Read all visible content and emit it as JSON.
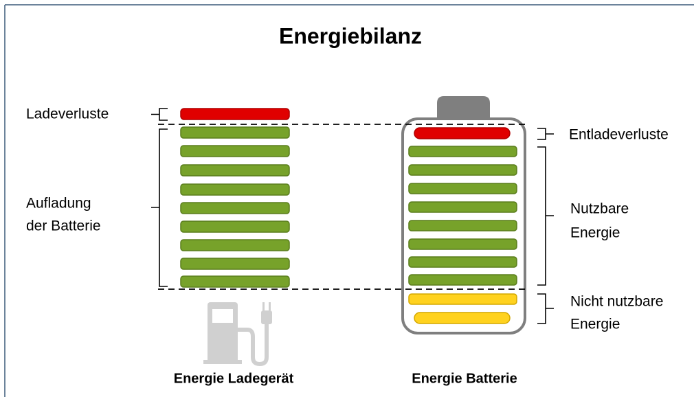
{
  "title": "Energiebilanz",
  "labels": {
    "charging_loss": "Ladeverluste",
    "charging": [
      "Aufladung",
      "der Batterie"
    ],
    "discharge_loss": "Entladeverluste",
    "usable": [
      "Nutzbare",
      "Energie"
    ],
    "unusable": [
      "Nicht nutzbare",
      "Energie"
    ]
  },
  "captions": [
    "Energie Ladegerät",
    "Energie Batterie"
  ]
}
